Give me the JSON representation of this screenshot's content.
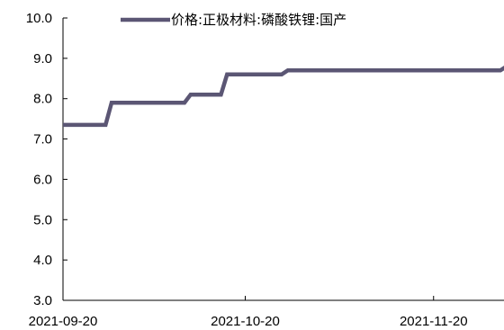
{
  "chart_data": {
    "type": "line",
    "title": "",
    "xlabel": "",
    "ylabel": "",
    "ylim": [
      3.0,
      10.0
    ],
    "y_ticks": [
      "3.0",
      "4.0",
      "5.0",
      "6.0",
      "7.0",
      "8.0",
      "9.0",
      "10.0"
    ],
    "x_range": [
      "2021-09-20",
      "2021-12-03"
    ],
    "x_ticks": [
      "2021-09-20",
      "2021-10-20",
      "2021-11-20"
    ],
    "grid": false,
    "legend_position": "top",
    "series": [
      {
        "name": "价格:正极材料:磷酸铁锂:国产",
        "color": "#5b5674",
        "points": [
          [
            "2021-09-20",
            7.35
          ],
          [
            "2021-09-27",
            7.35
          ],
          [
            "2021-09-28",
            7.9
          ],
          [
            "2021-10-10",
            7.9
          ],
          [
            "2021-10-11",
            8.1
          ],
          [
            "2021-10-16",
            8.1
          ],
          [
            "2021-10-17",
            8.6
          ],
          [
            "2021-10-26",
            8.6
          ],
          [
            "2021-10-27",
            8.7
          ],
          [
            "2021-12-01",
            8.7
          ],
          [
            "2021-12-02",
            8.8
          ],
          [
            "2021-12-03",
            8.8
          ]
        ]
      }
    ]
  }
}
